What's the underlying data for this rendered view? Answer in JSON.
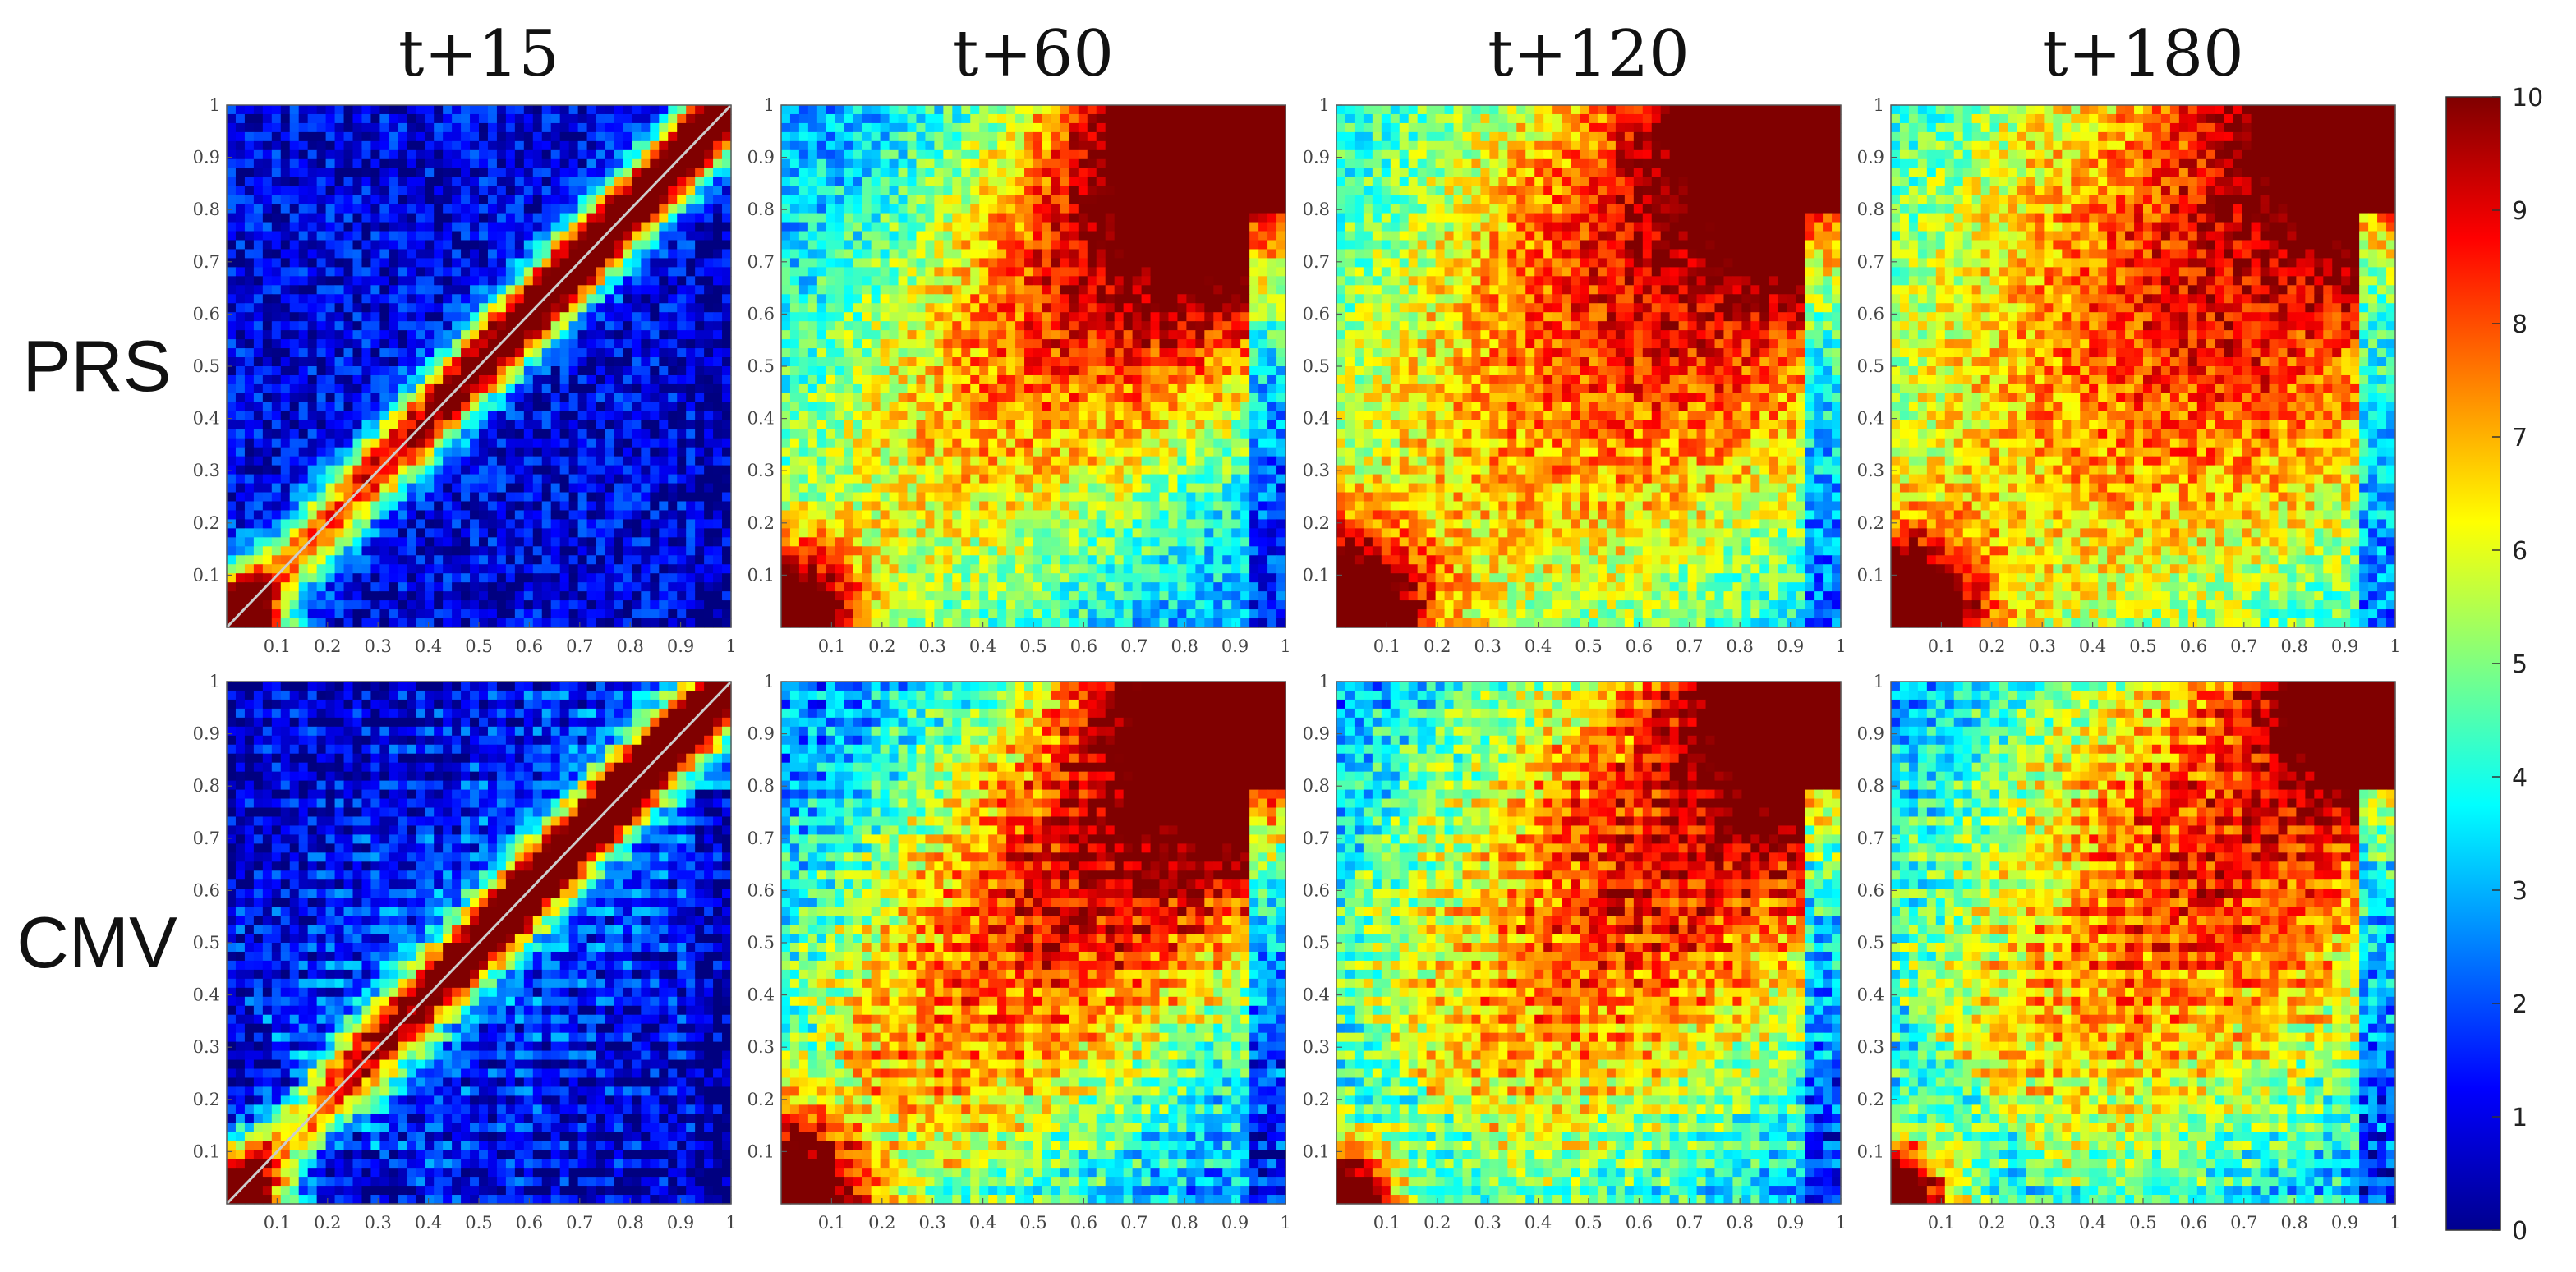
{
  "chart_data": {
    "type": "heatmap",
    "column_titles": [
      "t+15",
      "t+60",
      "t+120",
      "t+180"
    ],
    "row_labels": [
      "PRS",
      "CMV"
    ],
    "x_range": [
      0,
      1
    ],
    "y_range": [
      0,
      1
    ],
    "x_ticks": [
      0.1,
      0.2,
      0.3,
      0.4,
      0.5,
      0.6,
      0.7,
      0.8,
      0.9,
      1
    ],
    "y_ticks": [
      0.1,
      0.2,
      0.3,
      0.4,
      0.5,
      0.6,
      0.7,
      0.8,
      0.9,
      1
    ],
    "x_tick_labels": [
      "0.1",
      "0.2",
      "0.3",
      "0.4",
      "0.5",
      "0.6",
      "0.7",
      "0.8",
      "0.9",
      "1"
    ],
    "y_tick_labels": [
      "0.1",
      "0.2",
      "0.3",
      "0.4",
      "0.5",
      "0.6",
      "0.7",
      "0.8",
      "0.9",
      "1"
    ],
    "colorbar": {
      "colormap": "jet",
      "range": [
        0,
        10
      ],
      "ticks": [
        0,
        1,
        2,
        3,
        4,
        5,
        6,
        7,
        8,
        9,
        10
      ],
      "tick_labels": [
        "0",
        "1",
        "2",
        "3",
        "4",
        "5",
        "6",
        "7",
        "8",
        "9",
        "10"
      ]
    },
    "diagonal_reference_line": {
      "color": "#cccccc",
      "panels": [
        "PRS/t+15",
        "CMV/t+15"
      ]
    },
    "panels": [
      {
        "row": "PRS",
        "column": "t+15",
        "diagonal_spread": 0.06,
        "corner_hotspot_top": 0.0,
        "corner_hotspot_bottom": 0.08,
        "background_level": 1.0,
        "striped": false
      },
      {
        "row": "PRS",
        "column": "t+60",
        "diagonal_spread": 0.4,
        "corner_hotspot_top": 0.35,
        "corner_hotspot_bottom": 0.1,
        "background_level": 2.5,
        "striped": false
      },
      {
        "row": "PRS",
        "column": "t+120",
        "diagonal_spread": 0.55,
        "corner_hotspot_top": 0.3,
        "corner_hotspot_bottom": 0.12,
        "background_level": 2.8,
        "striped": false
      },
      {
        "row": "PRS",
        "column": "t+180",
        "diagonal_spread": 0.6,
        "corner_hotspot_top": 0.25,
        "corner_hotspot_bottom": 0.12,
        "background_level": 2.8,
        "striped": false
      },
      {
        "row": "CMV",
        "column": "t+15",
        "diagonal_spread": 0.06,
        "corner_hotspot_top": 0.0,
        "corner_hotspot_bottom": 0.08,
        "background_level": 1.0,
        "striped": true
      },
      {
        "row": "CMV",
        "column": "t+60",
        "diagonal_spread": 0.45,
        "corner_hotspot_top": 0.3,
        "corner_hotspot_bottom": 0.12,
        "background_level": 2.2,
        "striped": true
      },
      {
        "row": "CMV",
        "column": "t+120",
        "diagonal_spread": 0.6,
        "corner_hotspot_top": 0.25,
        "corner_hotspot_bottom": 0.08,
        "background_level": 1.8,
        "striped": true
      },
      {
        "row": "CMV",
        "column": "t+180",
        "diagonal_spread": 0.65,
        "corner_hotspot_top": 0.2,
        "corner_hotspot_bottom": 0.08,
        "background_level": 1.6,
        "striped": true
      }
    ]
  }
}
